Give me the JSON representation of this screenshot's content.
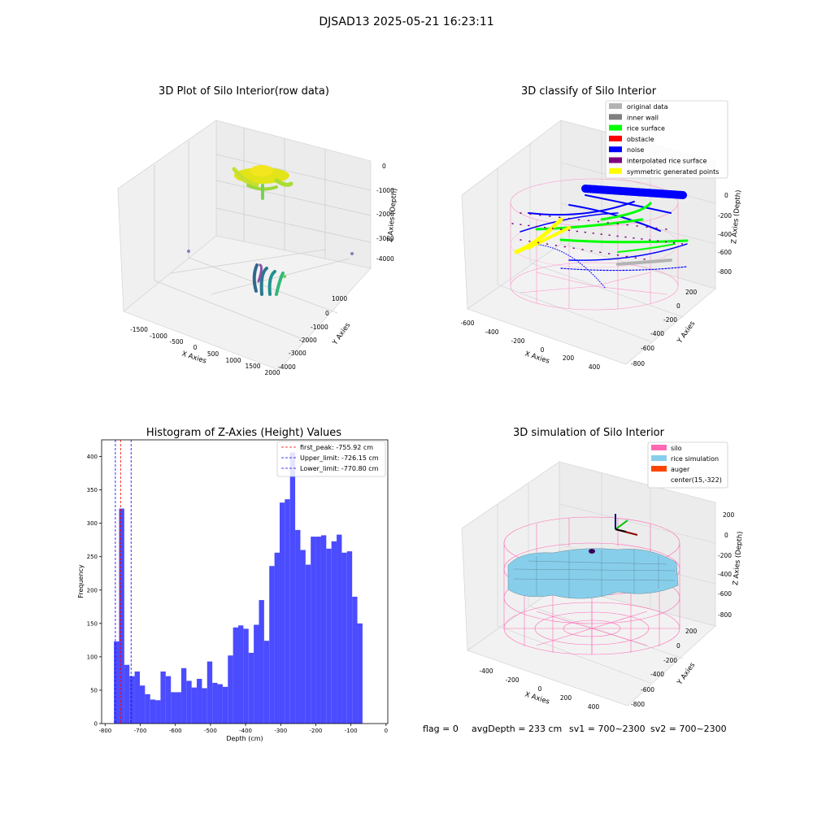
{
  "figure": {
    "suptitle": "DJSAD13 2025-05-21 16:23:11",
    "footer": {
      "flag": "flag = 0",
      "avg": "avgDepth = 233 cm",
      "sv1": "sv1 = 700~2300",
      "sv2": "sv2 = 700~2300"
    }
  },
  "chart_data": [
    {
      "type": "scatter",
      "projection": "3d",
      "title": "3D Plot of Silo Interior(row data)",
      "xlabel": "X Axies",
      "ylabel": "Y Axies",
      "zlabel": "Z Axies (Depth)",
      "x_ticks": [
        "-1500",
        "-1000",
        "-500",
        "0",
        "500",
        "1000",
        "1500",
        "2000"
      ],
      "y_ticks": [
        "1000",
        "0",
        "-1000",
        "-2000",
        "-3000",
        "-4000"
      ],
      "z_ticks": [
        "0",
        "-1000",
        "-2000",
        "-3000",
        "-4000"
      ],
      "colormap": "viridis",
      "grid": true
    },
    {
      "type": "scatter",
      "projection": "3d",
      "title": "3D classify of Silo Interior",
      "xlabel": "X Axies",
      "ylabel": "Y Axies",
      "zlabel": "Z Axies (Depth)",
      "x_ticks": [
        "-600",
        "-400",
        "-200",
        "0",
        "200",
        "400"
      ],
      "y_ticks": [
        "200",
        "0",
        "-200",
        "-400",
        "-600",
        "-800"
      ],
      "z_ticks": [
        "0",
        "-200",
        "-400",
        "-600",
        "-800"
      ],
      "legend_position": "top-right",
      "legend": [
        {
          "label": "original data",
          "color": "#b3b3b3"
        },
        {
          "label": "inner wall",
          "color": "#808080"
        },
        {
          "label": "rice surface",
          "color": "#00ff00"
        },
        {
          "label": "obstacle",
          "color": "#ff0000"
        },
        {
          "label": "noise",
          "color": "#0000ff"
        },
        {
          "label": "interpolated rice surface",
          "color": "#800080"
        },
        {
          "label": "symmetric generated points",
          "color": "#ffff00"
        }
      ],
      "grid": true
    },
    {
      "type": "bar",
      "title": "Histogram of Z-Axies (Height) Values",
      "xlabel": "Depth (cm)",
      "ylabel": "Frequency",
      "xlim": [
        -810,
        5
      ],
      "ylim": [
        0,
        425
      ],
      "x_ticks": [
        -800,
        -700,
        -600,
        -500,
        -400,
        -300,
        -200,
        -100,
        0
      ],
      "y_ticks": [
        0,
        50,
        100,
        150,
        200,
        250,
        300,
        350,
        400
      ],
      "bar_color": "#4b4bff",
      "bins": {
        "start": -775,
        "width": 14.75
      },
      "values": [
        123,
        322,
        88,
        71,
        78,
        57,
        44,
        36,
        35,
        78,
        71,
        47,
        47,
        83,
        64,
        54,
        67,
        53,
        93,
        61,
        59,
        55,
        102,
        144,
        147,
        142,
        106,
        148,
        185,
        124,
        236,
        256,
        331,
        336,
        406,
        290,
        260,
        238,
        280,
        280,
        282,
        262,
        273,
        283,
        256,
        258,
        190,
        150
      ],
      "vlines": [
        {
          "label": "first_peak: -755.92 cm",
          "x": -755.92,
          "color": "#ff0000",
          "style": "dashed"
        },
        {
          "label": "Upper_limit: -726.15 cm",
          "x": -726.15,
          "color": "#0000ff",
          "style": "dashed"
        },
        {
          "label": "Lower_limit: -770.80 cm",
          "x": -770.8,
          "color": "#0000ff",
          "style": "dashed"
        }
      ],
      "legend_position": "top-right",
      "grid": false
    },
    {
      "type": "surface",
      "projection": "3d",
      "title": "3D simulation of Silo Interior",
      "xlabel": "X Axies",
      "ylabel": "Y Axies",
      "zlabel": "Z Axies (Depth)",
      "x_ticks": [
        "-400",
        "-200",
        "0",
        "200",
        "400"
      ],
      "y_ticks": [
        "200",
        "0",
        "-200",
        "-400",
        "-600",
        "-800"
      ],
      "z_ticks": [
        "200",
        "0",
        "-200",
        "-400",
        "-600",
        "-800"
      ],
      "legend_position": "top-right",
      "legend": [
        {
          "label": "silo",
          "color": "#ff69b4"
        },
        {
          "label": "rice simulation",
          "color": "#87ceeb"
        },
        {
          "label": "auger",
          "color": "#ff4500"
        },
        {
          "label": "center(15,-322)",
          "color": ""
        }
      ],
      "grid": true
    }
  ]
}
